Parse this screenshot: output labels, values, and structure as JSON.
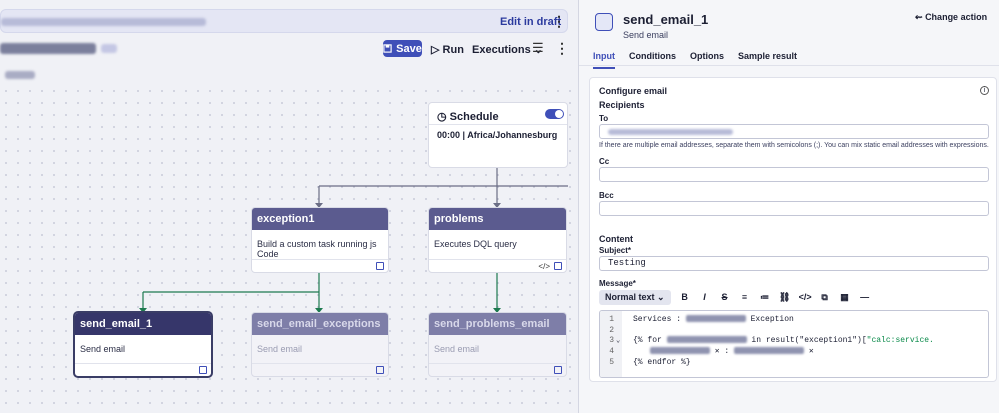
{
  "left": {
    "banner_action": "Edit in draft",
    "toolbar": {
      "save": "Save",
      "run": "Run",
      "executions": "Executions"
    },
    "nodes": {
      "schedule": {
        "title": "Schedule",
        "detail": "00:00 | Africa/Johannesburg",
        "enabled": true
      },
      "exception1": {
        "title": "exception1",
        "desc": "Build a custom task running js Code"
      },
      "problems": {
        "title": "problems",
        "desc": "Executes DQL query"
      },
      "send_email_1": {
        "title": "send_email_1",
        "desc": "Send email"
      },
      "send_email_exceptions": {
        "title": "send_email_exceptions",
        "desc": "Send email"
      },
      "send_problems_email": {
        "title": "send_problems_email",
        "desc": "Send email"
      }
    }
  },
  "right": {
    "title": "send_email_1",
    "subtitle": "Send email",
    "change_action": "Change action",
    "tabs": [
      "Input",
      "Conditions",
      "Options",
      "Sample result"
    ],
    "section": "Configure email",
    "recipients": "Recipients",
    "to_label": "To",
    "to_help": "If there are multiple email addresses, separate them with semicolons (;). You can mix static email addresses with expressions.",
    "cc_label": "Cc",
    "bcc_label": "Bcc",
    "content": "Content",
    "subject_label": "Subject*",
    "subject_value": "Testing",
    "message_label": "Message*",
    "format": "Normal text",
    "code": {
      "l1": "Services : ",
      "l1b": " Exception",
      "l3a": "{% for ",
      "l3b": " in result(\"exception1\")[",
      "l3c": "\"calc:service.",
      "l4": " : ",
      "l5": "{% endfor %}"
    }
  }
}
